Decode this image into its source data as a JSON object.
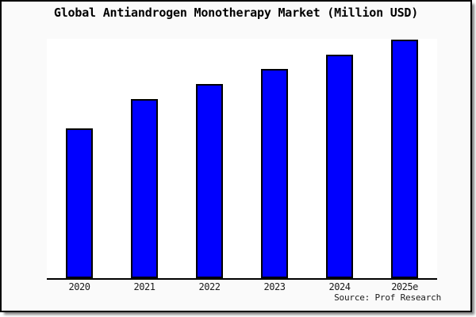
{
  "window": {
    "background": "#ffffff"
  },
  "panel": {
    "background": "#fafafa",
    "border_color": "#000000",
    "shadow_color": "#5a5a5a"
  },
  "chart_data": {
    "type": "bar",
    "title": "Global Antiandrogen Monotherapy Market (Million USD)",
    "categories": [
      "2020",
      "2021",
      "2022",
      "2023",
      "2024",
      "2025e"
    ],
    "values": [
      62.9,
      75.1,
      81.5,
      87.8,
      93.6,
      100
    ],
    "value_note": "relative units estimated from bar heights; y-axis has no ticks, labels or gridlines in the image (tallest bar 2025e = 100)",
    "xlabel": "",
    "ylabel": "",
    "ylim": [
      0,
      100.3
    ],
    "grid": false,
    "legend": false,
    "plot_background": "#ffffff",
    "axis_line_color": "#000000",
    "bar_fill": "#0000ff",
    "bar_border": "#000000",
    "source_note": "Source: Prof Research"
  }
}
